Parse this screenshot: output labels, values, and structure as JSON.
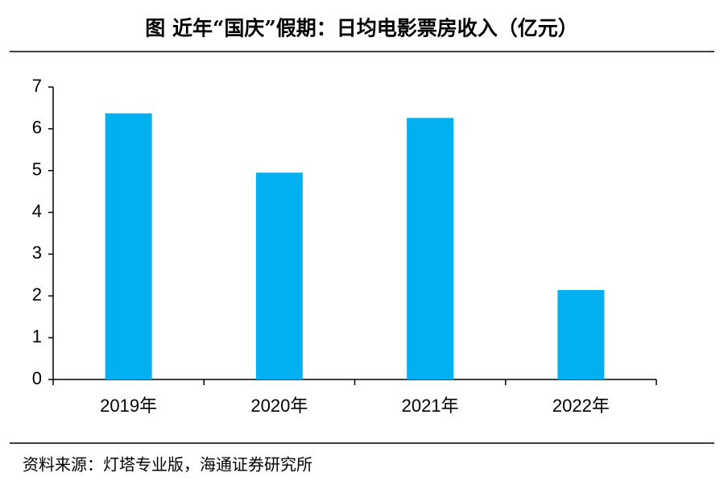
{
  "chart_data": {
    "type": "bar",
    "title": "图  近年“国庆”假期：日均电影票房收入（亿元）",
    "categories": [
      "2019年",
      "2020年",
      "2021年",
      "2022年"
    ],
    "values": [
      6.37,
      4.95,
      6.26,
      2.14
    ],
    "color": "#00b0f0",
    "ylim": [
      0,
      7
    ],
    "yticks": [
      0,
      1,
      2,
      3,
      4,
      5,
      6,
      7
    ],
    "grid": false,
    "source": "资料来源：灯塔专业版，海通证券研究所"
  }
}
